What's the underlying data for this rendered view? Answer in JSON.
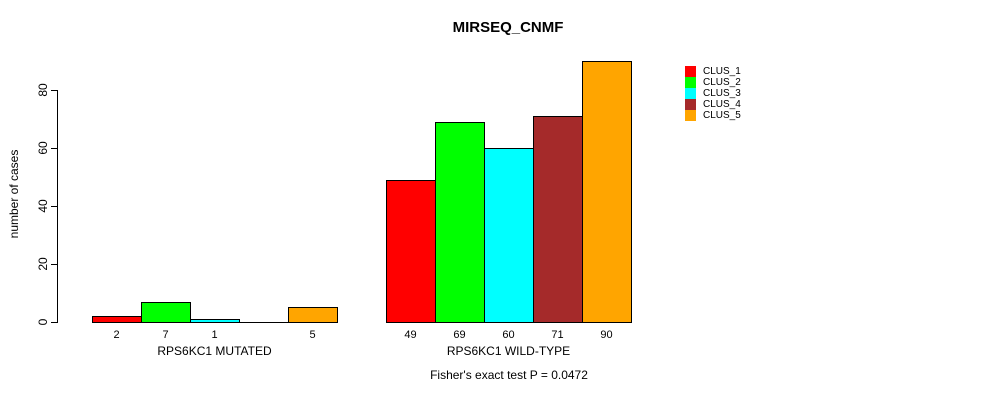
{
  "title": "MIRSEQ_CNMF",
  "caption": "Fisher's exact test P = 0.0472",
  "y_axis": {
    "label": "number of cases",
    "ticks": [
      0,
      20,
      40,
      60,
      80
    ]
  },
  "legend": {
    "position": "right",
    "entries": [
      {
        "label": "CLUS_1",
        "color": "#ff0000"
      },
      {
        "label": "CLUS_2",
        "color": "#00ff00"
      },
      {
        "label": "CLUS_3",
        "color": "#00ffff"
      },
      {
        "label": "CLUS_4",
        "color": "#a52a2a"
      },
      {
        "label": "CLUS_5",
        "color": "#ffa500"
      }
    ]
  },
  "chart_data": {
    "type": "bar",
    "title": "MIRSEQ_CNMF",
    "categories": [
      "RPS6KC1 MUTATED",
      "RPS6KC1 WILD-TYPE"
    ],
    "series": [
      {
        "name": "CLUS_1",
        "color": "#ff0000",
        "values": [
          2,
          49
        ]
      },
      {
        "name": "CLUS_2",
        "color": "#00ff00",
        "values": [
          7,
          69
        ]
      },
      {
        "name": "CLUS_3",
        "color": "#00ffff",
        "values": [
          1,
          60
        ]
      },
      {
        "name": "CLUS_4",
        "color": "#a52a2a",
        "values": [
          0,
          71
        ]
      },
      {
        "name": "CLUS_5",
        "color": "#ffa500",
        "values": [
          5,
          90
        ]
      }
    ],
    "value_labels": [
      [
        "2",
        "7",
        "1",
        "",
        "5"
      ],
      [
        "49",
        "69",
        "60",
        "71",
        "90"
      ]
    ],
    "xlabel": "",
    "ylabel": "number of cases",
    "ylim": [
      0,
      90
    ],
    "yticks": [
      0,
      20,
      40,
      60,
      80
    ],
    "grid": false,
    "legend_position": "right",
    "annotation": "Fisher's exact test P = 0.0472"
  }
}
